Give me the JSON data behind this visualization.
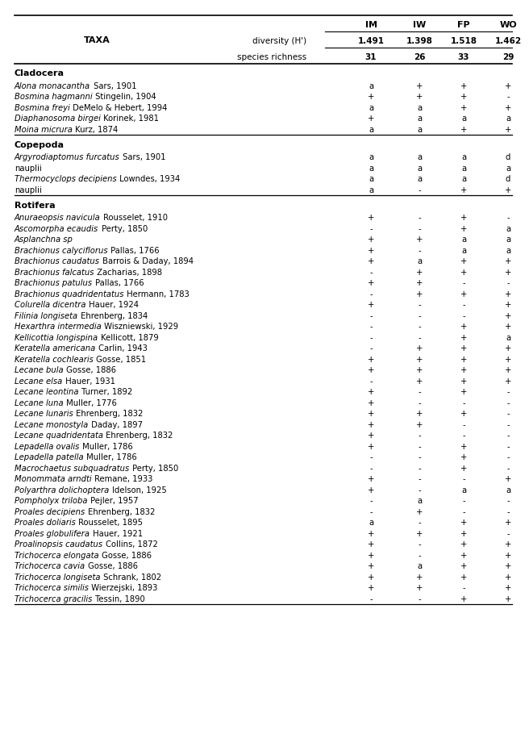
{
  "col_headers": [
    "IM",
    "IW",
    "FP",
    "WO"
  ],
  "subrow1_label": "diversity (H')",
  "subrow1_values": [
    "1.491",
    "1.398",
    "1.518",
    "1.462"
  ],
  "subrow2_label": "species richness",
  "subrow2_values": [
    "31",
    "26",
    "33",
    "29"
  ],
  "sections": [
    {
      "name": "Cladocera",
      "rows": [
        {
          "taxa_italic": "Alona monacantha",
          "taxa_normal": " Sars, 1901",
          "values": [
            "a",
            "+",
            "+",
            "+"
          ]
        },
        {
          "taxa_italic": "Bosmina hagmanni",
          "taxa_normal": " Stingelin, 1904",
          "values": [
            "+",
            "+",
            "+",
            "-"
          ]
        },
        {
          "taxa_italic": "Bosmina freyi",
          "taxa_normal": " DeMelo & Hebert, 1994",
          "values": [
            "a",
            "a",
            "+",
            "+"
          ]
        },
        {
          "taxa_italic": "Diaphanosoma birgei",
          "taxa_normal": " Korinek, 1981",
          "values": [
            "+",
            "a",
            "a",
            "a"
          ]
        },
        {
          "taxa_italic": "Moina micrura",
          "taxa_normal": " Kurz, 1874",
          "values": [
            "a",
            "a",
            "+",
            "+"
          ]
        }
      ]
    },
    {
      "name": "Copepoda",
      "rows": [
        {
          "taxa_italic": "Argyrodiaptomus furcatus",
          "taxa_normal": " Sars, 1901",
          "values": [
            "a",
            "a",
            "a",
            "d"
          ]
        },
        {
          "taxa_italic": "",
          "taxa_normal": "nauplii",
          "values": [
            "a",
            "a",
            "a",
            "a"
          ]
        },
        {
          "taxa_italic": "Thermocyclops decipiens",
          "taxa_normal": " Lowndes, 1934",
          "values": [
            "a",
            "a",
            "a",
            "d"
          ]
        },
        {
          "taxa_italic": "",
          "taxa_normal": "nauplii",
          "values": [
            "a",
            "-",
            "+",
            "+"
          ]
        }
      ]
    },
    {
      "name": "Rotifera",
      "rows": [
        {
          "taxa_italic": "Anuraeopsis navicula",
          "taxa_normal": " Rousselet, 1910",
          "values": [
            "+",
            "-",
            "+",
            "-"
          ]
        },
        {
          "taxa_italic": "Ascomorpha ecaudis",
          "taxa_normal": " Perty, 1850",
          "values": [
            "-",
            "-",
            "+",
            "a"
          ]
        },
        {
          "taxa_italic": "Asplanchna sp",
          "taxa_normal": "",
          "values": [
            "+",
            "+",
            "a",
            "a"
          ]
        },
        {
          "taxa_italic": "Brachionus calyciflorus",
          "taxa_normal": " Pallas, 1766",
          "values": [
            "+",
            "-",
            "a",
            "a"
          ]
        },
        {
          "taxa_italic": "Brachionus caudatus",
          "taxa_normal": " Barrois & Daday, 1894",
          "values": [
            "+",
            "a",
            "+",
            "+"
          ]
        },
        {
          "taxa_italic": "Brachionus falcatus",
          "taxa_normal": " Zacharias, 1898",
          "values": [
            "-",
            "+",
            "+",
            "+"
          ]
        },
        {
          "taxa_italic": "Brachionus patulus",
          "taxa_normal": " Pallas, 1766",
          "values": [
            "+",
            "+",
            "-",
            "-"
          ]
        },
        {
          "taxa_italic": "Brachionus quadridentatus",
          "taxa_normal": " Hermann, 1783",
          "values": [
            "-",
            "+",
            "+",
            "+"
          ]
        },
        {
          "taxa_italic": "Colurella dicentra",
          "taxa_normal": " Hauer, 1924",
          "values": [
            "+",
            "-",
            "-",
            "+"
          ]
        },
        {
          "taxa_italic": "Filinia longiseta",
          "taxa_normal": " Ehrenberg, 1834",
          "values": [
            "-",
            "-",
            "-",
            "+"
          ]
        },
        {
          "taxa_italic": "Hexarthra intermedia",
          "taxa_normal": " Wiszniewski, 1929",
          "values": [
            "-",
            "-",
            "+",
            "+"
          ]
        },
        {
          "taxa_italic": "Kellicottia longispina",
          "taxa_normal": " Kellicott, 1879",
          "values": [
            "-",
            "-",
            "+",
            "a"
          ]
        },
        {
          "taxa_italic": "Keratella americana",
          "taxa_normal": " Carlin, 1943",
          "values": [
            "-",
            "+",
            "+",
            "+"
          ]
        },
        {
          "taxa_italic": "Keratella cochlearis",
          "taxa_normal": " Gosse, 1851",
          "values": [
            "+",
            "+",
            "+",
            "+"
          ]
        },
        {
          "taxa_italic": "Lecane bula",
          "taxa_normal": " Gosse, 1886",
          "values": [
            "+",
            "+",
            "+",
            "+"
          ]
        },
        {
          "taxa_italic": "Lecane elsa",
          "taxa_normal": " Hauer, 1931",
          "values": [
            "-",
            "+",
            "+",
            "+"
          ]
        },
        {
          "taxa_italic": "Lecane leontina",
          "taxa_normal": " Turner, 1892",
          "values": [
            "+",
            "-",
            "+",
            "-"
          ]
        },
        {
          "taxa_italic": "Lecane luna",
          "taxa_normal": " Muller, 1776",
          "values": [
            "+",
            "-",
            "-",
            "-"
          ]
        },
        {
          "taxa_italic": "Lecane lunaris",
          "taxa_normal": " Ehrenberg, 1832",
          "values": [
            "+",
            "+",
            "+",
            "-"
          ]
        },
        {
          "taxa_italic": "Lecane monostyla",
          "taxa_normal": " Daday, 1897",
          "values": [
            "+",
            "+",
            "-",
            "-"
          ]
        },
        {
          "taxa_italic": "Lecane quadridentata",
          "taxa_normal": " Ehrenberg, 1832",
          "values": [
            "+",
            "-",
            "-",
            "-"
          ]
        },
        {
          "taxa_italic": "Lepadella ovalis",
          "taxa_normal": " Muller, 1786",
          "values": [
            "+",
            "-",
            "+",
            "-"
          ]
        },
        {
          "taxa_italic": "Lepadella patella",
          "taxa_normal": " Muller, 1786",
          "values": [
            "-",
            "-",
            "+",
            "-"
          ]
        },
        {
          "taxa_italic": "Macrochaetus subquadratus",
          "taxa_normal": " Perty, 1850",
          "values": [
            "-",
            "-",
            "+",
            "-"
          ]
        },
        {
          "taxa_italic": "Monommata arndti",
          "taxa_normal": " Remane, 1933",
          "values": [
            "+",
            "-",
            "-",
            "+"
          ]
        },
        {
          "taxa_italic": "Polyarthra dolichoptera",
          "taxa_normal": " Idelson, 1925",
          "values": [
            "+",
            "-",
            "a",
            "a"
          ]
        },
        {
          "taxa_italic": "Pompholyx triloba",
          "taxa_normal": " Pejler, 1957",
          "values": [
            "-",
            "a",
            "-",
            "-"
          ]
        },
        {
          "taxa_italic": "Proales decipiens",
          "taxa_normal": " Ehrenberg, 1832",
          "values": [
            "-",
            "+",
            "-",
            "-"
          ]
        },
        {
          "taxa_italic": "Proales doliaris",
          "taxa_normal": " Rousselet, 1895",
          "values": [
            "a",
            "-",
            "+",
            "+"
          ]
        },
        {
          "taxa_italic": "Proales globulifera",
          "taxa_normal": " Hauer, 1921",
          "values": [
            "+",
            "+",
            "+",
            "-"
          ]
        },
        {
          "taxa_italic": "Proalinopsis caudatus",
          "taxa_normal": " Collins, 1872",
          "values": [
            "+",
            "-",
            "+",
            "+"
          ]
        },
        {
          "taxa_italic": "Trichocerca elongata",
          "taxa_normal": " Gosse, 1886",
          "values": [
            "+",
            "-",
            "+",
            "+"
          ]
        },
        {
          "taxa_italic": "Trichocerca cavia",
          "taxa_normal": " Gosse, 1886",
          "values": [
            "+",
            "a",
            "+",
            "+"
          ]
        },
        {
          "taxa_italic": "Trichocerca longiseta",
          "taxa_normal": " Schrank, 1802",
          "values": [
            "+",
            "+",
            "+",
            "+"
          ]
        },
        {
          "taxa_italic": "Trichocerca similis",
          "taxa_normal": " Wierzejski, 1893",
          "values": [
            "+",
            "+",
            "-",
            "+"
          ]
        },
        {
          "taxa_italic": "Trichocerca gracilis",
          "taxa_normal": " Tessin, 1890",
          "values": [
            "-",
            "-",
            "+",
            "+"
          ]
        }
      ]
    }
  ]
}
